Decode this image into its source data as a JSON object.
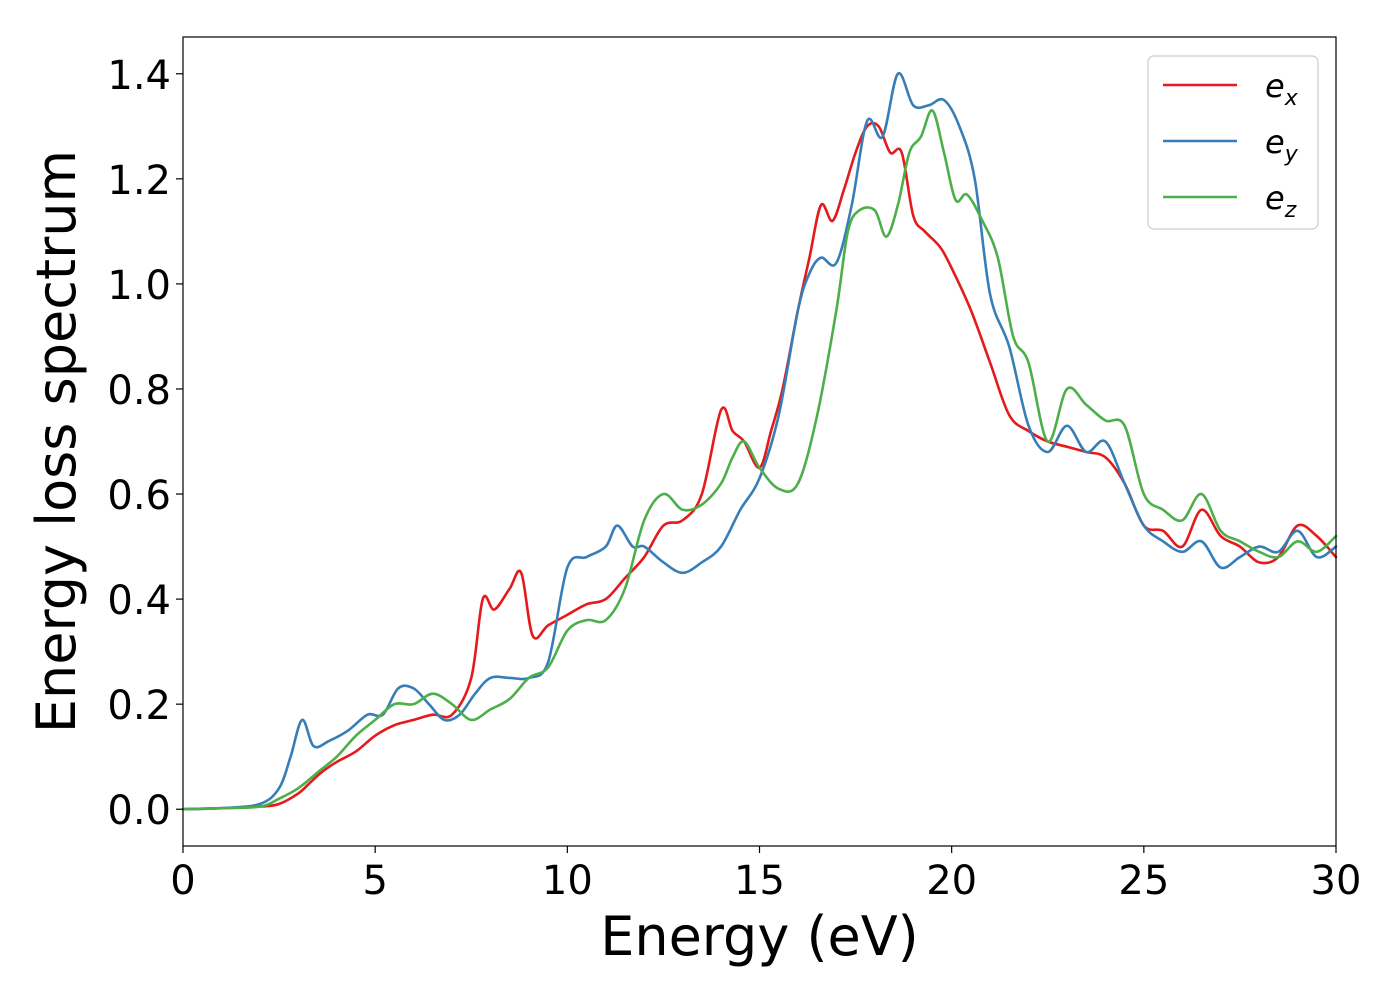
{
  "chart_data": {
    "type": "line",
    "title": "",
    "xlabel": "Energy (eV)",
    "ylabel": "Energy loss spectrum",
    "xlim": [
      0,
      30
    ],
    "ylim": [
      -0.07,
      1.47
    ],
    "xticks": [
      0,
      5,
      10,
      15,
      20,
      25,
      30
    ],
    "yticks": [
      0.0,
      0.2,
      0.4,
      0.6,
      0.8,
      1.0,
      1.2,
      1.4
    ],
    "xtick_labels": [
      "0",
      "5",
      "10",
      "15",
      "20",
      "25",
      "30"
    ],
    "ytick_labels": [
      "0.0",
      "0.2",
      "0.4",
      "0.6",
      "0.8",
      "1.0",
      "1.2",
      "1.4"
    ],
    "grid": false,
    "legend_position": "top-right",
    "series": [
      {
        "name": "e_x",
        "legend_base": "e",
        "legend_sub": "x",
        "color": "#e41a1c",
        "x": [
          0,
          1,
          2,
          2.5,
          3,
          3.3,
          3.6,
          4,
          4.5,
          5,
          5.5,
          6,
          6.5,
          7,
          7.5,
          7.8,
          8.1,
          8.5,
          8.8,
          9.1,
          9.5,
          10,
          10.5,
          11,
          11.5,
          12,
          12.5,
          13,
          13.5,
          14,
          14.3,
          14.6,
          15,
          15.3,
          15.6,
          16,
          16.3,
          16.6,
          16.9,
          17.2,
          17.5,
          17.8,
          18.1,
          18.4,
          18.7,
          19,
          19.3,
          19.7,
          20,
          20.5,
          21,
          21.5,
          22,
          22.5,
          23,
          23.5,
          24,
          24.5,
          25,
          25.5,
          26,
          26.5,
          27,
          27.5,
          28,
          28.5,
          29,
          29.5,
          30
        ],
        "values": [
          0.0,
          0.002,
          0.005,
          0.01,
          0.03,
          0.05,
          0.07,
          0.09,
          0.11,
          0.14,
          0.16,
          0.17,
          0.18,
          0.18,
          0.25,
          0.4,
          0.38,
          0.42,
          0.45,
          0.33,
          0.35,
          0.37,
          0.39,
          0.4,
          0.44,
          0.48,
          0.54,
          0.55,
          0.6,
          0.76,
          0.72,
          0.7,
          0.65,
          0.72,
          0.8,
          0.95,
          1.05,
          1.15,
          1.12,
          1.18,
          1.25,
          1.3,
          1.3,
          1.25,
          1.25,
          1.13,
          1.1,
          1.07,
          1.03,
          0.95,
          0.85,
          0.75,
          0.72,
          0.7,
          0.69,
          0.68,
          0.67,
          0.62,
          0.54,
          0.53,
          0.5,
          0.57,
          0.52,
          0.5,
          0.47,
          0.48,
          0.54,
          0.52,
          0.48
        ]
      },
      {
        "name": "e_y",
        "legend_base": "e",
        "legend_sub": "y",
        "color": "#377eb8",
        "x": [
          0,
          1,
          2,
          2.5,
          2.8,
          3.1,
          3.4,
          3.8,
          4.3,
          4.8,
          5.2,
          5.6,
          6,
          6.4,
          6.8,
          7.2,
          7.6,
          8,
          8.5,
          9,
          9.5,
          10,
          10.5,
          11,
          11.3,
          11.7,
          12,
          12.5,
          13,
          13.5,
          14,
          14.5,
          15,
          15.5,
          16,
          16.3,
          16.6,
          17,
          17.4,
          17.8,
          18.2,
          18.6,
          19,
          19.4,
          19.8,
          20.2,
          20.6,
          21,
          21.5,
          22,
          22.5,
          23,
          23.5,
          24,
          24.5,
          25,
          25.5,
          26,
          26.5,
          27,
          27.5,
          28,
          28.5,
          29,
          29.5,
          30
        ],
        "values": [
          0.0,
          0.002,
          0.01,
          0.04,
          0.1,
          0.17,
          0.12,
          0.13,
          0.15,
          0.18,
          0.18,
          0.23,
          0.23,
          0.2,
          0.17,
          0.18,
          0.22,
          0.25,
          0.25,
          0.25,
          0.28,
          0.46,
          0.48,
          0.5,
          0.54,
          0.5,
          0.5,
          0.47,
          0.45,
          0.47,
          0.5,
          0.57,
          0.63,
          0.75,
          0.95,
          1.02,
          1.05,
          1.04,
          1.15,
          1.31,
          1.28,
          1.4,
          1.34,
          1.34,
          1.35,
          1.3,
          1.2,
          0.98,
          0.88,
          0.73,
          0.68,
          0.73,
          0.68,
          0.7,
          0.62,
          0.54,
          0.51,
          0.49,
          0.51,
          0.46,
          0.48,
          0.5,
          0.49,
          0.53,
          0.48,
          0.5
        ]
      },
      {
        "name": "e_z",
        "legend_base": "e",
        "legend_sub": "z",
        "color": "#4daf4a",
        "x": [
          0,
          1,
          2,
          2.5,
          3,
          3.5,
          4,
          4.5,
          5,
          5.5,
          6,
          6.5,
          7,
          7.5,
          8,
          8.5,
          9,
          9.5,
          10,
          10.5,
          11,
          11.5,
          12,
          12.5,
          13,
          13.5,
          14,
          14.3,
          14.6,
          15,
          15.5,
          16,
          16.5,
          17,
          17.3,
          17.6,
          18,
          18.3,
          18.6,
          18.9,
          19.2,
          19.5,
          19.8,
          20.1,
          20.4,
          20.8,
          21.2,
          21.6,
          22,
          22.5,
          23,
          23.5,
          24,
          24.5,
          25,
          25.5,
          26,
          26.5,
          27,
          27.5,
          28,
          28.5,
          29,
          29.5,
          30
        ],
        "values": [
          0.0,
          0.002,
          0.005,
          0.02,
          0.04,
          0.07,
          0.1,
          0.14,
          0.17,
          0.2,
          0.2,
          0.22,
          0.2,
          0.17,
          0.19,
          0.21,
          0.25,
          0.27,
          0.34,
          0.36,
          0.36,
          0.42,
          0.55,
          0.6,
          0.57,
          0.58,
          0.62,
          0.67,
          0.7,
          0.65,
          0.61,
          0.62,
          0.75,
          0.95,
          1.1,
          1.14,
          1.14,
          1.09,
          1.15,
          1.25,
          1.28,
          1.33,
          1.25,
          1.16,
          1.17,
          1.12,
          1.05,
          0.9,
          0.85,
          0.7,
          0.8,
          0.77,
          0.74,
          0.73,
          0.6,
          0.57,
          0.55,
          0.6,
          0.53,
          0.51,
          0.49,
          0.48,
          0.51,
          0.49,
          0.52
        ]
      }
    ]
  }
}
